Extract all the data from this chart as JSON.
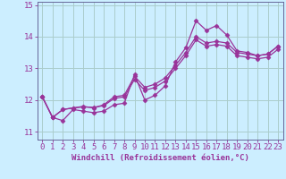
{
  "xlabel": "Windchill (Refroidissement éolien,°C)",
  "ylabel": "",
  "bg_color": "#cceeff",
  "line_color": "#993399",
  "grid_color": "#aacccc",
  "axis_color": "#666699",
  "x_data": [
    0,
    1,
    2,
    3,
    4,
    5,
    6,
    7,
    8,
    9,
    10,
    11,
    12,
    13,
    14,
    15,
    16,
    17,
    18,
    19,
    20,
    21,
    22,
    23
  ],
  "series": [
    [
      12.1,
      11.45,
      11.35,
      11.7,
      11.65,
      11.6,
      11.65,
      11.85,
      11.9,
      12.8,
      12.0,
      12.15,
      12.45,
      13.2,
      13.65,
      14.5,
      14.2,
      14.35,
      14.05,
      13.55,
      13.5,
      13.4,
      13.45,
      13.7
    ],
    [
      12.1,
      11.45,
      11.7,
      11.75,
      11.8,
      11.75,
      11.85,
      12.1,
      12.15,
      12.75,
      12.4,
      12.5,
      12.7,
      13.1,
      13.5,
      14.0,
      13.8,
      13.85,
      13.8,
      13.5,
      13.45,
      13.4,
      13.45,
      13.7
    ],
    [
      12.1,
      11.45,
      11.7,
      11.75,
      11.78,
      11.77,
      11.82,
      12.05,
      12.1,
      12.65,
      12.3,
      12.4,
      12.6,
      13.0,
      13.4,
      13.9,
      13.7,
      13.75,
      13.7,
      13.4,
      13.35,
      13.3,
      13.35,
      13.6
    ]
  ],
  "xlim": [
    -0.5,
    23.5
  ],
  "ylim": [
    10.75,
    15.1
  ],
  "yticks": [
    11,
    12,
    13,
    14,
    15
  ],
  "xticks": [
    0,
    1,
    2,
    3,
    4,
    5,
    6,
    7,
    8,
    9,
    10,
    11,
    12,
    13,
    14,
    15,
    16,
    17,
    18,
    19,
    20,
    21,
    22,
    23
  ],
  "marker": "D",
  "markersize": 2.5,
  "linewidth": 0.9,
  "fontsize_xlabel": 6.5,
  "fontsize_tick": 6.5
}
